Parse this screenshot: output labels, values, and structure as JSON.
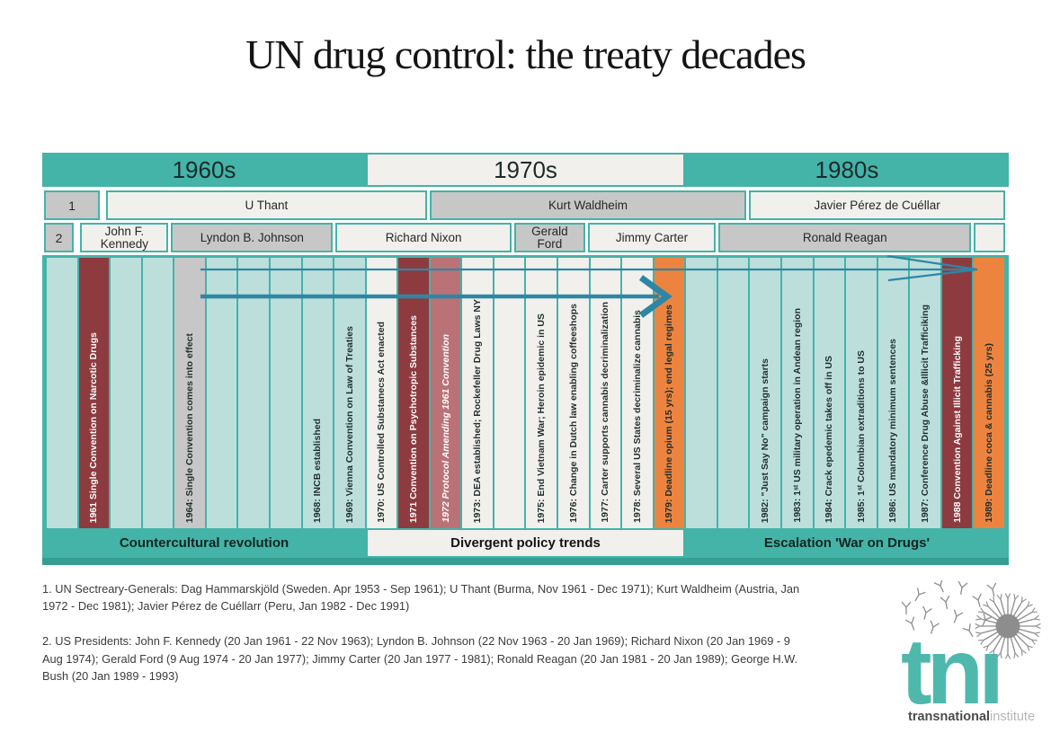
{
  "title": "UN drug control: the treaty decades",
  "decades": [
    {
      "label": "1960s",
      "theme": "teal"
    },
    {
      "label": "1970s",
      "theme": "cream"
    },
    {
      "label": "1980s",
      "theme": "teal"
    }
  ],
  "secretary_generals": {
    "row_label": "1",
    "items": [
      {
        "name": "U Thant",
        "theme": "cream",
        "from": 1961.85,
        "to": 1972.0
      },
      {
        "name": "Kurt Waldheim",
        "theme": "gray",
        "from": 1972.0,
        "to": 1982.0
      },
      {
        "name": "Javier Pérez de Cuéllar",
        "theme": "cream",
        "from": 1982.0,
        "to": 1990.12
      }
    ]
  },
  "presidents": {
    "row_label": "2",
    "items": [
      {
        "name": "John F. Kennedy",
        "theme": "cream",
        "from": 1961.05,
        "to": 1963.9
      },
      {
        "name": "Lyndon B. Johnson",
        "theme": "gray",
        "from": 1963.9,
        "to": 1969.05
      },
      {
        "name": "Richard Nixon",
        "theme": "cream",
        "from": 1969.05,
        "to": 1974.65
      },
      {
        "name": "Gerald Ford",
        "theme": "gray",
        "from": 1974.65,
        "to": 1976.95
      },
      {
        "name": "Jimmy Carter",
        "theme": "cream",
        "from": 1976.95,
        "to": 1981.05
      },
      {
        "name": "Ronald Reagan",
        "theme": "gray",
        "from": 1981.05,
        "to": 1989.05
      },
      {
        "name": "",
        "theme": "cream",
        "from": 1989.05,
        "to": 1990.12
      }
    ]
  },
  "timeline": {
    "years": [
      {
        "year": 1960,
        "label": "",
        "theme": "tealight"
      },
      {
        "year": 1961,
        "label": "1961 Single Convention on Narcotic Drugs",
        "theme": "maroon"
      },
      {
        "year": 1962,
        "label": "",
        "theme": "tealight"
      },
      {
        "year": 1963,
        "label": "",
        "theme": "tealight"
      },
      {
        "year": 1964,
        "label": "1964: Single Convention comes into effect",
        "theme": "gray"
      },
      {
        "year": 1965,
        "label": "",
        "theme": "tealight"
      },
      {
        "year": 1966,
        "label": "",
        "theme": "tealight"
      },
      {
        "year": 1967,
        "label": "",
        "theme": "tealight"
      },
      {
        "year": 1968,
        "label": "1968: INCB established",
        "theme": "tealight"
      },
      {
        "year": 1969,
        "label": "1969: Vienna Convention on Law of Treaties",
        "theme": "tealight"
      },
      {
        "year": 1970,
        "label": "1970: US Controlled Substanecs Act enacted",
        "theme": "cream"
      },
      {
        "year": 1971,
        "label": "1971 Convention on Psychotropic Substances",
        "theme": "maroon"
      },
      {
        "year": 1972,
        "label": "1972 Protocol Amending 1961 Convention",
        "theme": "maroonlt",
        "italic": true
      },
      {
        "year": 1973,
        "label": "1973: DEA established; Rockefeller Drug Laws NY",
        "theme": "cream"
      },
      {
        "year": 1974,
        "label": "",
        "theme": "cream"
      },
      {
        "year": 1975,
        "label": "1975: End Vietnam War; Heroin epidemic in US",
        "theme": "cream"
      },
      {
        "year": 1976,
        "label": "1976: Change in Dutch law enabling coffeeshops",
        "theme": "cream"
      },
      {
        "year": 1977,
        "label": "1977: Carter supports cannabis decriminalization",
        "theme": "cream"
      },
      {
        "year": 1978,
        "label": "1978: Several US States decriminalize cannabis",
        "theme": "cream"
      },
      {
        "year": 1979,
        "label": "1979: Deadline opium (15 yrs); end legal regimes",
        "theme": "orange"
      },
      {
        "year": 1980,
        "label": "",
        "theme": "tealight"
      },
      {
        "year": 1981,
        "label": "",
        "theme": "tealight"
      },
      {
        "year": 1982,
        "label": "1982: \"Just Say No\" campaign starts",
        "theme": "tealight"
      },
      {
        "year": 1983,
        "label": "1983: 1ˢᵗ US military operation in Andean region",
        "theme": "tealight"
      },
      {
        "year": 1984,
        "label": "1984: Crack epedemic takes off in US",
        "theme": "tealight"
      },
      {
        "year": 1985,
        "label": "1985: 1ˢᵗ Colombian extraditions to US",
        "theme": "tealight"
      },
      {
        "year": 1986,
        "label": "1986: US mandatory minimum sentences",
        "theme": "tealight"
      },
      {
        "year": 1987,
        "label": "1987: Conference Drug Abuse &Illicit Trafficiking",
        "theme": "tealight"
      },
      {
        "year": 1988,
        "label": "1988 Convention Against Illicit Trafficking",
        "theme": "maroon"
      },
      {
        "year": 1989,
        "label": "1989: Deadline coca & cannabis (25 yrs)",
        "theme": "orange"
      }
    ]
  },
  "eras": [
    "Countercultural revolution",
    "Divergent policy trends",
    "Escalation 'War on Drugs'"
  ],
  "footnotes": [
    "1. UN Sectreary-Generals: Dag Hammarskjöld (Sweden. Apr 1953 - Sep 1961); U Thant (Burma, Nov 1961 - Dec 1971); Kurt Waldheim (Austria, Jan 1972 - Dec 1981); Javier Pérez de Cuéllarr (Peru, Jan 1982 - Dec 1991)",
    "2. US Presidents: John F. Kennedy (20 Jan 1961 - 22 Nov 1963); Lyndon B. Johnson (22 Nov 1963 - 20 Jan 1969); Richard Nixon (20 Jan 1969 - 9 Aug 1974); Gerald Ford (9 Aug 1974 - 20 Jan 1977); Jimmy Carter (20 Jan 1977 - 1981); Ronald Reagan (20 Jan 1981 - 20 Jan 1989); George H.W. Bush (20 Jan 1989 - 1993)"
  ],
  "logo": {
    "wordmark": "tni",
    "caption_bold": "transnational",
    "caption_light": "institute"
  },
  "colors": {
    "teal": "#44b3a8",
    "tealdeep": "#359e93",
    "tealight": "#bcdfdc",
    "cream": "#f1f0ec",
    "gray": "#c7c7c7",
    "maroon": "#8e3b40",
    "maroonlt": "#ba7276",
    "orange": "#ec8440",
    "arrow": "#2e86a5",
    "brand": "#4fb8ad"
  }
}
